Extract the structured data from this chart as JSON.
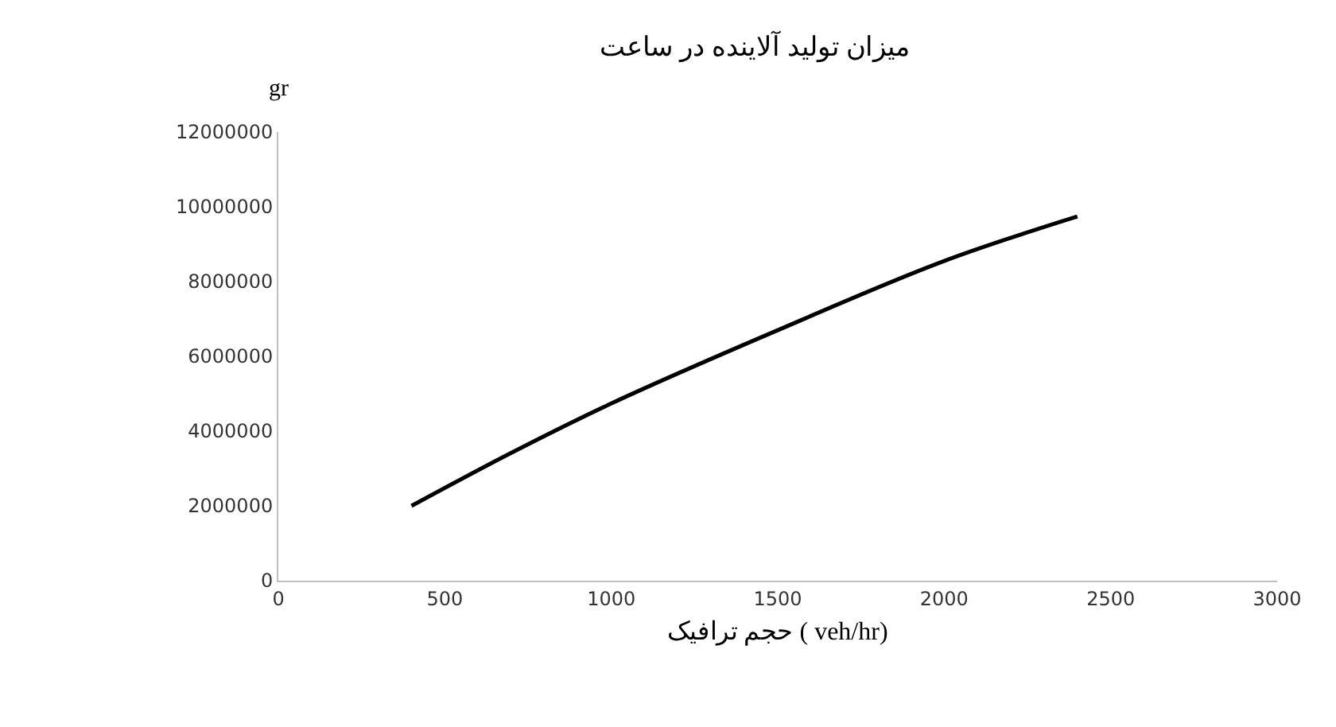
{
  "chart_data": {
    "type": "line",
    "title": "میزان تولید آلاینده در ساعت",
    "xlabel": "حجم ترافیک ( veh/hr)",
    "ylabel": "gr",
    "x": [
      400,
      700,
      1000,
      1500,
      2000,
      2400
    ],
    "series": [
      {
        "color": "#000000",
        "values": [
          2000000,
          3420000,
          4740000,
          6700000,
          8550000,
          9740000
        ]
      }
    ],
    "xlim": [
      0,
      3000
    ],
    "xticks": [
      0,
      500,
      1000,
      1500,
      2000,
      2500,
      3000
    ],
    "ylim": [
      0,
      12000000
    ],
    "yticks": [
      0,
      2000000,
      4000000,
      6000000,
      8000000,
      10000000,
      12000000
    ],
    "grid": false,
    "marker": "none",
    "line_style": "solid"
  }
}
